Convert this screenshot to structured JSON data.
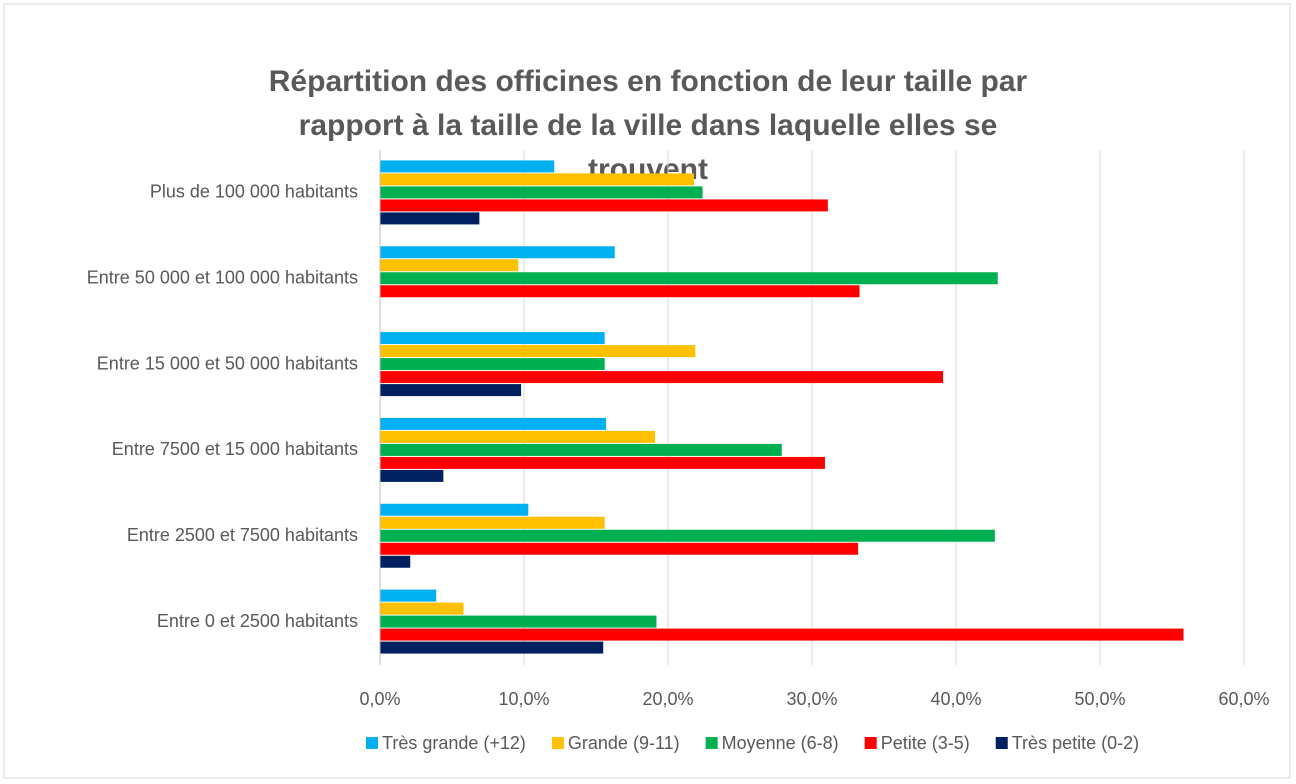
{
  "chart_data": {
    "type": "barh",
    "title": "Répartition des officines en fonction de leur taille par rapport à la taille de la ville dans laquelle elles se trouvent",
    "categories": [
      "Plus de 100 000 habitants",
      "Entre 50 000 et 100 000 habitants",
      "Entre 15 000 et 50 000 habitants",
      "Entre 7500 et 15 000 habitants",
      "Entre 2500 et 7500 habitants",
      "Entre 0 et 2500 habitants"
    ],
    "series": [
      {
        "name": "Très grande (+12)",
        "color": "#00b0f0",
        "values": [
          12.1,
          16.3,
          15.6,
          15.7,
          10.3,
          3.9
        ]
      },
      {
        "name": "Grande (9-11)",
        "color": "#ffc000",
        "values": [
          21.8,
          9.6,
          21.9,
          19.1,
          15.6,
          5.8
        ]
      },
      {
        "name": "Moyenne (6-8)",
        "color": "#00b050",
        "values": [
          22.4,
          42.9,
          15.6,
          27.9,
          42.7,
          19.2
        ]
      },
      {
        "name": "Petite (3-5)",
        "color": "#ff0000",
        "values": [
          31.1,
          33.3,
          39.1,
          30.9,
          33.2,
          55.8
        ]
      },
      {
        "name": "Très petite (0-2)",
        "color": "#002060",
        "values": [
          6.9,
          0,
          9.8,
          4.4,
          2.1,
          15.5
        ]
      }
    ],
    "xlim": [
      0,
      60
    ],
    "xticks": [
      {
        "value": 0,
        "label": "0,0%"
      },
      {
        "value": 10,
        "label": "10,0%"
      },
      {
        "value": 20,
        "label": "20,0%"
      },
      {
        "value": 30,
        "label": "30,0%"
      },
      {
        "value": 40,
        "label": "40,0%"
      },
      {
        "value": 50,
        "label": "50,0%"
      },
      {
        "value": 60,
        "label": "60,0%"
      }
    ],
    "grid": true,
    "legend": "bottom"
  }
}
